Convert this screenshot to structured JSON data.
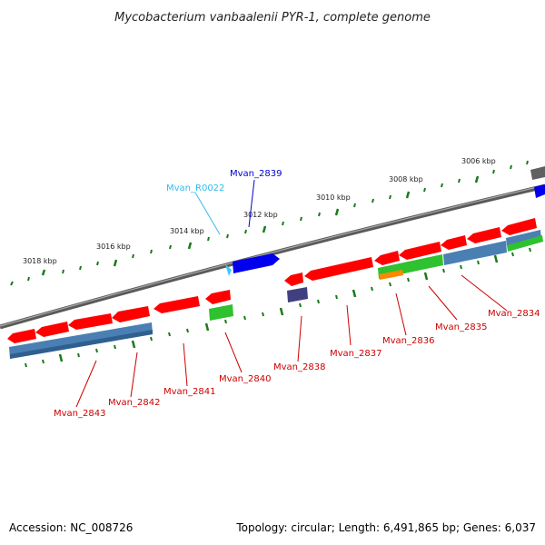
{
  "title": "Mycobacterium vanbaalenii PYR-1, complete genome",
  "accession": "Accession: NC_008726",
  "summary": "Topology: circular; Length: 6,491,865 bp; Genes: 6,037",
  "colors": {
    "cds": "#ff0000",
    "cds_dark": "#b40000",
    "trna": "#33ccff",
    "blue_gene": "#0000ee",
    "steel": "#4a7fb3",
    "green": "#2fc12f",
    "orange": "#ff8800",
    "purple": "#404080",
    "gray": "#555555",
    "tick": "#1a7a1a",
    "label_red": "#cc0000",
    "label_blue": "#0000cc",
    "label_cyan": "#33bbee"
  },
  "ruler_labels": [
    "3006 kbp",
    "3008 kbp",
    "3010 kbp",
    "3012 kbp",
    "3014 kbp",
    "3016 kbp",
    "3018 kbp"
  ],
  "gene_labels": [
    "Mvan_2839",
    "Mvan_R0022",
    "Mvan_2834",
    "Mvan_2835",
    "Mvan_2836",
    "Mvan_2837",
    "Mvan_2838",
    "Mvan_2840",
    "Mvan_2841",
    "Mvan_2842",
    "Mvan_2843"
  ]
}
